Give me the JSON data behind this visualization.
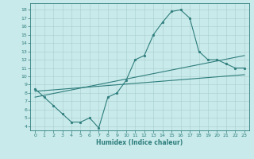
{
  "xlabel": "Humidex (Indice chaleur)",
  "xlim": [
    -0.5,
    23.5
  ],
  "ylim": [
    3.5,
    18.8
  ],
  "yticks": [
    4,
    5,
    6,
    7,
    8,
    9,
    10,
    11,
    12,
    13,
    14,
    15,
    16,
    17,
    18
  ],
  "xticks": [
    0,
    1,
    2,
    3,
    4,
    5,
    6,
    7,
    8,
    9,
    10,
    11,
    12,
    13,
    14,
    15,
    16,
    17,
    18,
    19,
    20,
    21,
    22,
    23
  ],
  "bg_color": "#c9eaea",
  "line_color": "#2e7d7d",
  "grid_color": "#a8cccc",
  "line1_x": [
    0,
    1,
    2,
    3,
    4,
    5,
    6,
    7,
    8,
    9,
    10,
    11,
    12,
    13,
    14,
    15,
    16,
    17,
    18,
    19,
    20,
    21,
    22,
    23
  ],
  "line1_y": [
    8.5,
    7.5,
    6.5,
    5.5,
    4.5,
    4.5,
    5.0,
    3.8,
    7.5,
    8.0,
    9.5,
    12.0,
    12.5,
    15.0,
    16.5,
    17.8,
    18.0,
    17.0,
    13.0,
    12.0,
    12.0,
    11.5,
    11.0,
    11.0
  ],
  "line2_x": [
    0,
    23
  ],
  "line2_y": [
    8.2,
    10.2
  ],
  "line3_x": [
    0,
    23
  ],
  "line3_y": [
    7.5,
    12.5
  ],
  "tick_fontsize": 4.5,
  "xlabel_fontsize": 5.5
}
